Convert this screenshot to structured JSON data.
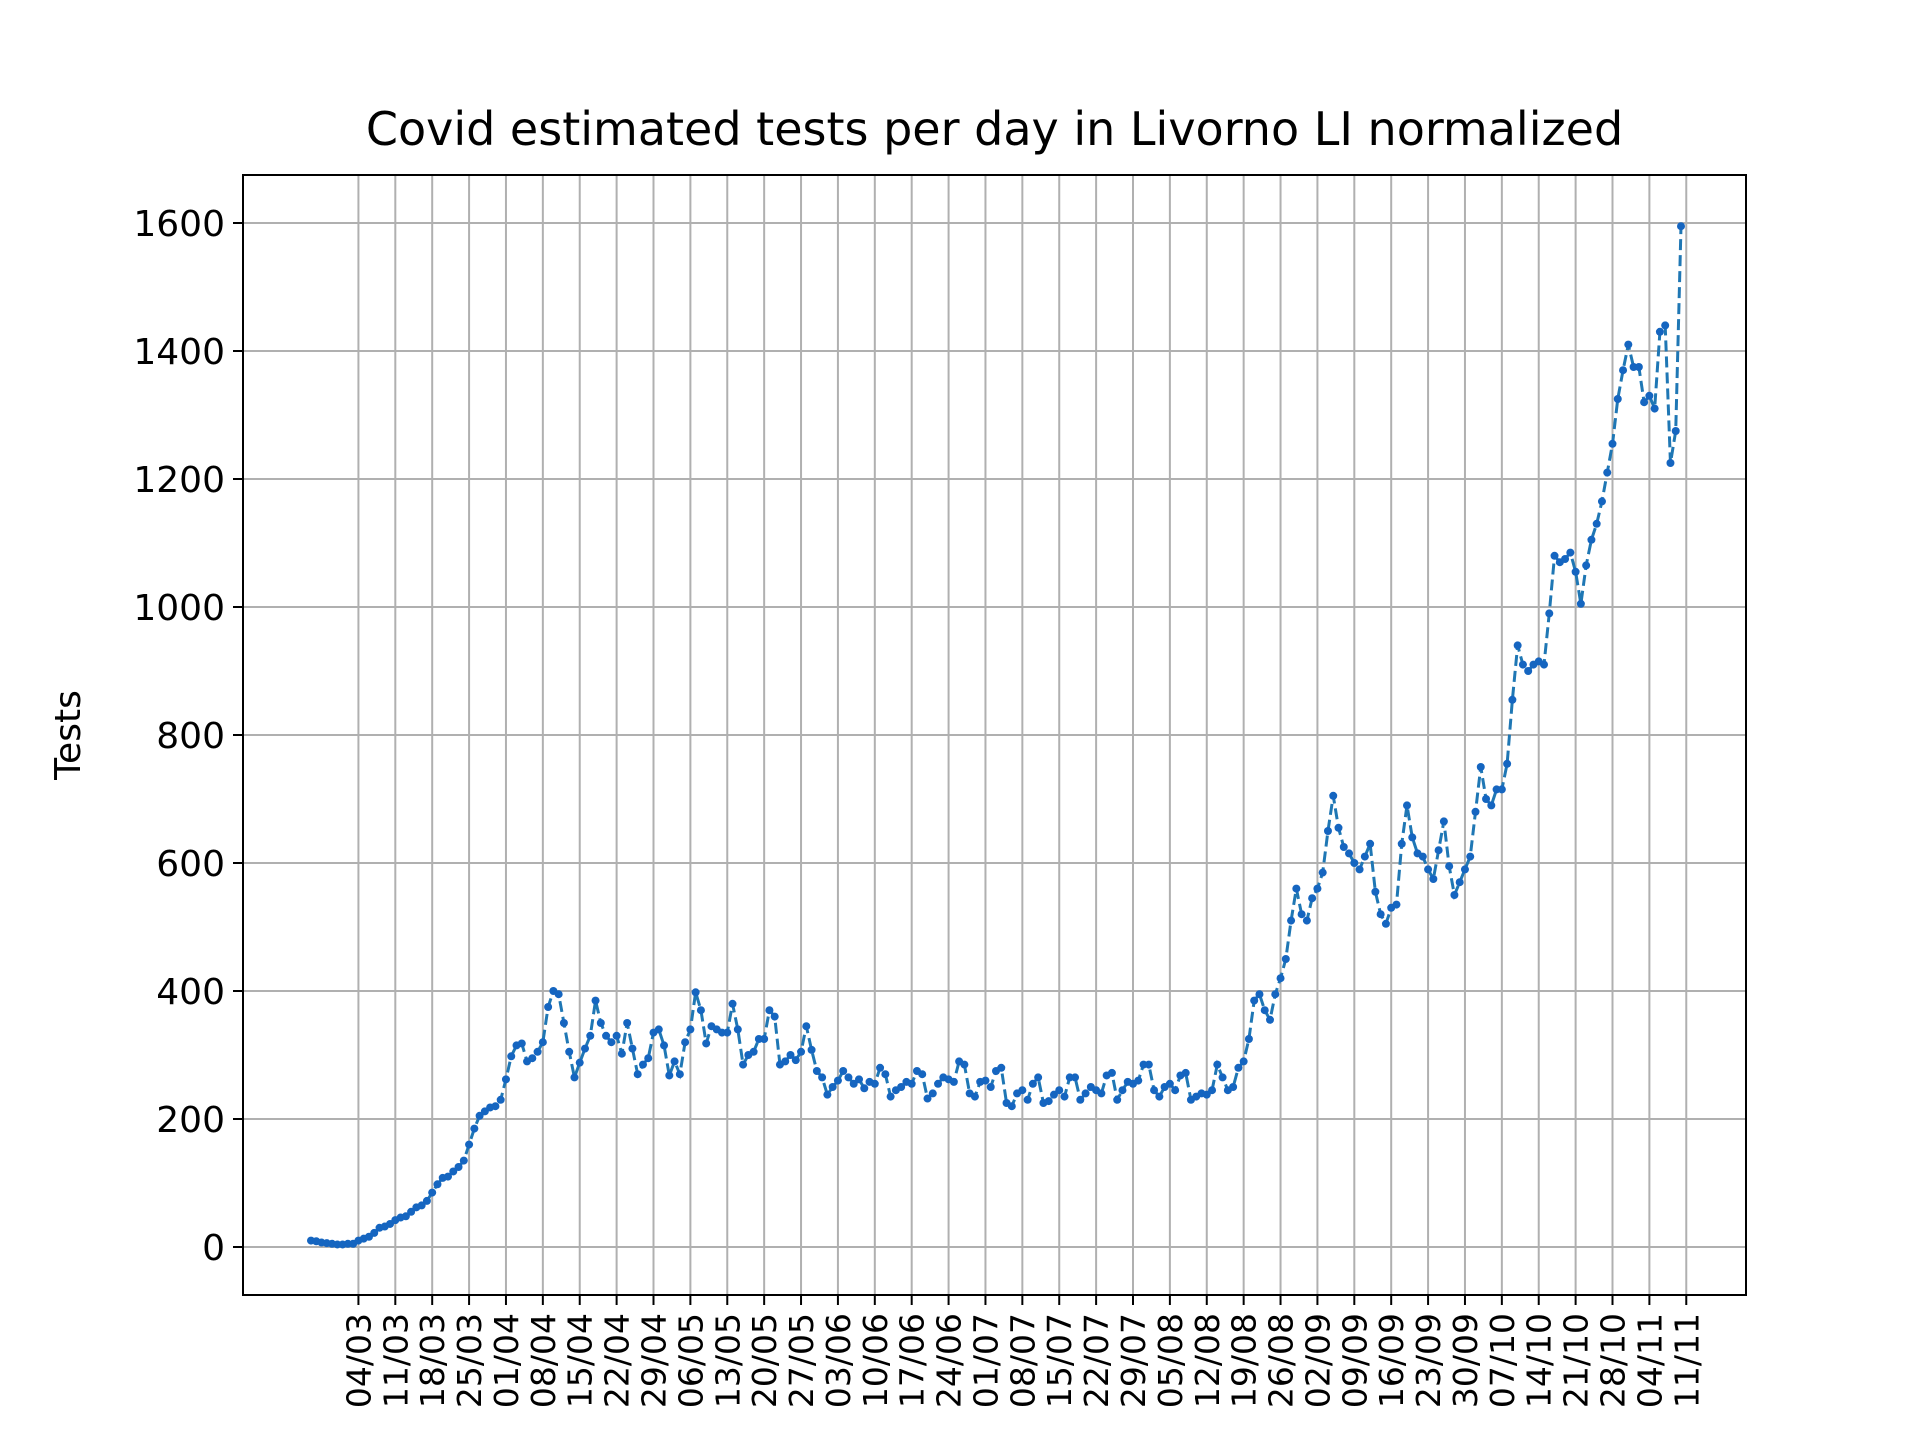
{
  "chart_data": {
    "type": "line",
    "title": "Covid estimated tests per day in Livorno LI normalized",
    "xlabel": "",
    "ylabel": "Tests",
    "ylim": [
      -75,
      1675
    ],
    "yticks": [
      0,
      200,
      400,
      600,
      800,
      1000,
      1200,
      1400,
      1600
    ],
    "xticks": [
      "04/03",
      "11/03",
      "18/03",
      "25/03",
      "01/04",
      "08/04",
      "15/04",
      "22/04",
      "29/04",
      "06/05",
      "13/05",
      "20/05",
      "27/05",
      "03/06",
      "10/06",
      "17/06",
      "24/06",
      "01/07",
      "08/07",
      "15/07",
      "22/07",
      "29/07",
      "05/08",
      "12/08",
      "19/08",
      "26/08",
      "02/09",
      "09/09",
      "16/09",
      "23/09",
      "30/09",
      "07/10",
      "14/10",
      "21/10",
      "28/10",
      "04/11",
      "11/11"
    ],
    "x_start": "2020-02-24",
    "grid": true,
    "legend": "none",
    "series": [
      {
        "color": "#1f77b4",
        "marker_color": "#1565c0",
        "line_style": "dashed",
        "values": [
          10,
          9,
          7,
          6,
          5,
          4,
          4,
          5,
          5,
          10,
          13,
          16,
          22,
          30,
          32,
          36,
          42,
          46,
          48,
          55,
          62,
          65,
          72,
          85,
          98,
          108,
          110,
          118,
          125,
          135,
          160,
          185,
          205,
          212,
          218,
          220,
          230,
          262,
          298,
          315,
          318,
          290,
          295,
          305,
          320,
          375,
          400,
          395,
          350,
          305,
          265,
          288,
          310,
          330,
          385,
          350,
          330,
          320,
          330,
          302,
          350,
          310,
          270,
          285,
          295,
          335,
          340,
          315,
          268,
          290,
          270,
          320,
          340,
          398,
          370,
          318,
          345,
          340,
          335,
          335,
          380,
          340,
          285,
          300,
          305,
          325,
          325,
          370,
          360,
          285,
          290,
          300,
          292,
          305,
          345,
          308,
          275,
          265,
          238,
          250,
          260,
          275,
          265,
          255,
          262,
          248,
          258,
          255,
          280,
          270,
          235,
          245,
          250,
          258,
          255,
          275,
          270,
          232,
          240,
          255,
          265,
          262,
          258,
          290,
          285,
          240,
          235,
          258,
          260,
          250,
          275,
          280,
          225,
          220,
          240,
          245,
          230,
          255,
          265,
          225,
          228,
          238,
          245,
          235,
          265,
          265,
          230,
          240,
          250,
          245,
          240,
          268,
          272,
          230,
          245,
          258,
          255,
          260,
          285,
          285,
          245,
          235,
          250,
          255,
          245,
          268,
          272,
          230,
          235,
          240,
          238,
          245,
          285,
          265,
          245,
          250,
          280,
          290,
          325,
          385,
          395,
          370,
          355,
          395,
          420,
          450,
          510,
          560,
          520,
          510,
          545,
          560,
          585,
          650,
          705,
          655,
          625,
          615,
          600,
          590,
          610,
          630,
          555,
          520,
          505,
          530,
          535,
          630,
          690,
          640,
          615,
          610,
          590,
          575,
          620,
          665,
          595,
          550,
          570,
          590,
          610,
          680,
          750,
          700,
          690,
          715,
          715,
          755,
          855,
          940,
          910,
          900,
          910,
          915,
          910,
          990,
          1080,
          1070,
          1075,
          1085,
          1055,
          1005,
          1065,
          1105,
          1130,
          1165,
          1210,
          1255,
          1325,
          1370,
          1410,
          1375,
          1375,
          1320,
          1330,
          1310,
          1430,
          1440,
          1225,
          1275,
          1595
        ]
      }
    ]
  }
}
